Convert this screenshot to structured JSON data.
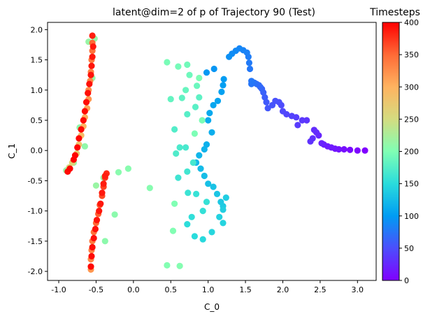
{
  "chart_data": {
    "type": "scatter",
    "title": "latent@dim=2 of p of Trajectory 90 (Test)",
    "xlabel": "C_0",
    "ylabel": "C_1",
    "xlim": [
      -1.15,
      3.25
    ],
    "ylim": [
      -2.15,
      2.12
    ],
    "x_ticks": [
      "-1.0",
      "-0.5",
      "0.0",
      "0.5",
      "1.0",
      "1.5",
      "2.0",
      "2.5",
      "3.0"
    ],
    "y_ticks": [
      "-2.0",
      "-1.5",
      "-1.0",
      "-0.5",
      "0.0",
      "0.5",
      "1.0",
      "1.5",
      "2.0"
    ],
    "grid": false,
    "colorbar": {
      "label": "Timesteps",
      "colormap": "rainbow",
      "range": [
        0,
        400
      ],
      "ticks": [
        "0",
        "50",
        "100",
        "150",
        "200",
        "250",
        "300",
        "350",
        "400"
      ]
    },
    "points": [
      [
        3.1,
        0.0,
        0
      ],
      [
        3.0,
        0.0,
        3
      ],
      [
        2.9,
        0.01,
        6
      ],
      [
        2.82,
        0.02,
        9
      ],
      [
        2.75,
        0.02,
        12
      ],
      [
        2.7,
        0.03,
        14
      ],
      [
        2.65,
        0.05,
        16
      ],
      [
        2.6,
        0.07,
        18
      ],
      [
        2.55,
        0.1,
        20
      ],
      [
        2.52,
        0.12,
        22
      ],
      [
        2.48,
        0.25,
        24
      ],
      [
        2.45,
        0.3,
        26
      ],
      [
        2.42,
        0.34,
        28
      ],
      [
        2.4,
        0.2,
        30
      ],
      [
        2.37,
        0.15,
        32
      ],
      [
        2.32,
        0.5,
        34
      ],
      [
        2.26,
        0.5,
        36
      ],
      [
        2.2,
        0.42,
        38
      ],
      [
        2.18,
        0.55,
        40
      ],
      [
        2.12,
        0.57,
        42
      ],
      [
        2.05,
        0.6,
        44
      ],
      [
        2.0,
        0.65,
        46
      ],
      [
        1.98,
        0.75,
        48
      ],
      [
        1.95,
        0.8,
        50
      ],
      [
        1.9,
        0.82,
        52
      ],
      [
        1.86,
        0.75,
        54
      ],
      [
        1.8,
        0.7,
        56
      ],
      [
        1.78,
        0.8,
        58
      ],
      [
        1.76,
        0.88,
        60
      ],
      [
        1.74,
        0.96,
        62
      ],
      [
        1.72,
        1.02,
        64
      ],
      [
        1.7,
        1.05,
        66
      ],
      [
        1.68,
        1.08,
        68
      ],
      [
        1.65,
        1.1,
        70
      ],
      [
        1.62,
        1.12,
        72
      ],
      [
        1.6,
        1.13,
        74
      ],
      [
        1.58,
        1.1,
        75
      ],
      [
        1.58,
        1.15,
        76
      ],
      [
        1.56,
        1.35,
        77
      ],
      [
        1.55,
        1.45,
        78
      ],
      [
        1.54,
        1.55,
        80
      ],
      [
        1.52,
        1.62,
        82
      ],
      [
        1.47,
        1.66,
        84
      ],
      [
        1.42,
        1.69,
        86
      ],
      [
        1.37,
        1.65,
        88
      ],
      [
        1.32,
        1.6,
        90
      ],
      [
        1.28,
        1.55,
        92
      ],
      [
        1.08,
        1.35,
        96
      ],
      [
        0.98,
        1.29,
        98
      ],
      [
        1.21,
        1.18,
        100
      ],
      [
        1.2,
        1.08,
        102
      ],
      [
        1.18,
        0.97,
        104
      ],
      [
        1.13,
        0.82,
        106
      ],
      [
        1.07,
        0.75,
        108
      ],
      [
        1.02,
        0.62,
        110
      ],
      [
        1.0,
        0.5,
        112
      ],
      [
        1.05,
        0.3,
        114
      ],
      [
        0.98,
        0.1,
        116
      ],
      [
        0.95,
        0.02,
        118
      ],
      [
        0.88,
        -0.08,
        120
      ],
      [
        0.84,
        -0.2,
        122
      ],
      [
        0.9,
        -0.3,
        124
      ],
      [
        0.95,
        -0.42,
        126
      ],
      [
        1.0,
        -0.55,
        128
      ],
      [
        1.07,
        -0.6,
        130
      ],
      [
        1.12,
        -0.72,
        132
      ],
      [
        1.17,
        -0.85,
        134
      ],
      [
        1.2,
        -0.92,
        136
      ],
      [
        1.24,
        -0.78,
        138
      ],
      [
        1.2,
        -0.98,
        140
      ],
      [
        1.15,
        -1.1,
        142
      ],
      [
        1.2,
        -1.2,
        144
      ],
      [
        1.05,
        -1.35,
        146
      ],
      [
        0.93,
        -1.47,
        148
      ],
      [
        0.82,
        -1.42,
        150
      ],
      [
        0.72,
        -1.22,
        152
      ],
      [
        0.78,
        -1.1,
        154
      ],
      [
        0.93,
        -1.0,
        156
      ],
      [
        0.98,
        -0.85,
        157
      ],
      [
        0.84,
        -0.72,
        158
      ],
      [
        0.73,
        -0.7,
        160
      ],
      [
        0.6,
        -0.45,
        162
      ],
      [
        0.72,
        -0.35,
        164
      ],
      [
        0.8,
        -0.2,
        166
      ],
      [
        0.7,
        0.05,
        168
      ],
      [
        0.62,
        0.05,
        170
      ],
      [
        0.57,
        -0.05,
        172
      ],
      [
        0.55,
        0.35,
        174
      ],
      [
        0.72,
        0.6,
        176
      ],
      [
        0.83,
        0.72,
        178
      ],
      [
        0.88,
        0.88,
        180
      ],
      [
        0.65,
        0.87,
        182
      ],
      [
        0.5,
        0.85,
        184
      ],
      [
        0.7,
        1.0,
        186
      ],
      [
        0.85,
        1.07,
        188
      ],
      [
        0.75,
        1.25,
        190
      ],
      [
        0.72,
        1.42,
        192
      ],
      [
        0.6,
        1.39,
        194
      ],
      [
        0.45,
        1.46,
        196
      ],
      [
        0.92,
        0.5,
        197
      ],
      [
        0.82,
        0.28,
        198
      ],
      [
        0.88,
        1.2,
        199
      ],
      [
        0.55,
        -0.88,
        200
      ],
      [
        0.53,
        -1.33,
        201
      ],
      [
        0.45,
        -1.9,
        202
      ],
      [
        0.62,
        -1.91,
        203
      ],
      [
        0.22,
        -0.62,
        204
      ],
      [
        -0.07,
        -0.3,
        205
      ],
      [
        -0.2,
        -0.36,
        206
      ],
      [
        -0.25,
        -1.06,
        207
      ],
      [
        -0.38,
        -1.5,
        208
      ],
      [
        -0.55,
        -1.6,
        209
      ],
      [
        -0.65,
        0.07,
        210
      ],
      [
        -0.72,
        0.38,
        211
      ],
      [
        -0.55,
        1.2,
        212
      ],
      [
        -0.52,
        1.85,
        213
      ],
      [
        -0.6,
        1.8,
        214
      ],
      [
        -0.5,
        -0.58,
        215
      ],
      [
        -0.4,
        -0.45,
        216
      ],
      [
        -0.8,
        -0.2,
        217
      ],
      [
        -0.9,
        -0.33,
        218
      ],
      [
        -0.86,
        -0.28,
        250
      ],
      [
        -0.82,
        -0.2,
        260
      ],
      [
        -0.76,
        -0.05,
        270
      ],
      [
        -0.73,
        0.1,
        280
      ],
      [
        -0.7,
        0.25,
        290
      ],
      [
        -0.67,
        0.4,
        300
      ],
      [
        -0.65,
        0.55,
        305
      ],
      [
        -0.62,
        0.7,
        310
      ],
      [
        -0.6,
        0.85,
        320
      ],
      [
        -0.6,
        1.0,
        325
      ],
      [
        -0.58,
        1.15,
        330
      ],
      [
        -0.57,
        1.3,
        335
      ],
      [
        -0.56,
        1.5,
        340
      ],
      [
        -0.55,
        1.65,
        345
      ],
      [
        -0.55,
        1.78,
        350
      ],
      [
        -0.57,
        -1.97,
        320
      ],
      [
        -0.57,
        -1.8,
        330
      ],
      [
        -0.56,
        -1.65,
        335
      ],
      [
        -0.55,
        -1.5,
        340
      ],
      [
        -0.53,
        -1.35,
        345
      ],
      [
        -0.5,
        -1.2,
        350
      ],
      [
        -0.47,
        -1.05,
        355
      ],
      [
        -0.45,
        -0.9,
        360
      ],
      [
        -0.42,
        -0.75,
        365
      ],
      [
        -0.4,
        -0.6,
        370
      ],
      [
        -0.38,
        -0.45,
        375
      ],
      [
        -0.36,
        -0.38,
        380
      ],
      [
        -0.88,
        -0.35,
        395
      ],
      [
        -0.85,
        -0.3,
        398
      ],
      [
        -0.8,
        -0.15,
        400
      ],
      [
        -0.78,
        -0.08,
        399
      ],
      [
        -0.75,
        0.05,
        398
      ],
      [
        -0.73,
        0.2,
        397
      ],
      [
        -0.7,
        0.35,
        396
      ],
      [
        -0.67,
        0.5,
        396
      ],
      [
        -0.65,
        0.65,
        395
      ],
      [
        -0.63,
        0.8,
        394
      ],
      [
        -0.61,
        0.95,
        393
      ],
      [
        -0.59,
        1.1,
        392
      ],
      [
        -0.57,
        1.25,
        391
      ],
      [
        -0.56,
        1.4,
        390
      ],
      [
        -0.55,
        1.55,
        389
      ],
      [
        -0.54,
        1.72,
        388
      ],
      [
        -0.55,
        1.9,
        387
      ],
      [
        -0.57,
        -1.92,
        396
      ],
      [
        -0.56,
        -1.75,
        395
      ],
      [
        -0.55,
        -1.6,
        394
      ],
      [
        -0.53,
        -1.45,
        393
      ],
      [
        -0.51,
        -1.3,
        392
      ],
      [
        -0.49,
        -1.15,
        391
      ],
      [
        -0.46,
        -1.0,
        390
      ],
      [
        -0.44,
        -0.88,
        389
      ],
      [
        -0.42,
        -0.7,
        388
      ],
      [
        -0.4,
        -0.55,
        387
      ],
      [
        -0.38,
        -0.42,
        386
      ]
    ]
  }
}
